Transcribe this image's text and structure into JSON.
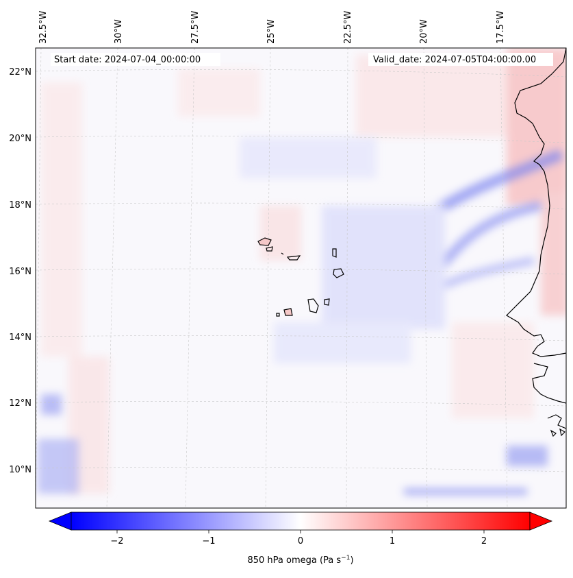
{
  "map": {
    "start_date": "Start date: 2024-07-04_00:00:00",
    "valid_date": "Valid_date: 2024-07-05T04:00:00.00",
    "lon_labels": [
      "32.5°W",
      "30°W",
      "27.5°W",
      "25°W",
      "22.5°W",
      "20°W",
      "17.5°W"
    ],
    "lat_labels": [
      "22°N",
      "20°N",
      "18°N",
      "16°N",
      "14°N",
      "12°N",
      "10°N"
    ]
  },
  "colorbar": {
    "ticks": [
      "−2",
      "−1",
      "0",
      "1",
      "2"
    ],
    "tick_values": [
      -2,
      -1,
      0,
      1,
      2
    ],
    "range": [
      -2.5,
      2.5
    ],
    "label_main": "850 hPa omega (Pa s",
    "label_sup": "−1",
    "label_end": ")",
    "colors": {
      "negative": "#0000ff",
      "zero": "#ffffff",
      "positive": "#ff0000"
    }
  }
}
